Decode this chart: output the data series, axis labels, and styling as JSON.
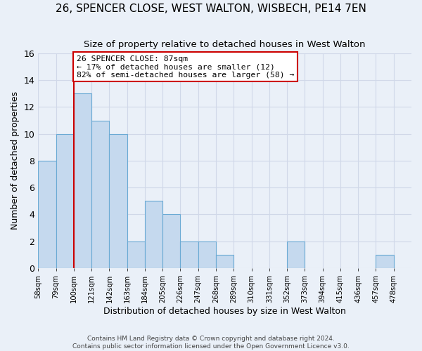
{
  "title": "26, SPENCER CLOSE, WEST WALTON, WISBECH, PE14 7EN",
  "subtitle": "Size of property relative to detached houses in West Walton",
  "xlabel": "Distribution of detached houses by size in West Walton",
  "ylabel": "Number of detached properties",
  "bin_labels": [
    "58sqm",
    "79sqm",
    "100sqm",
    "121sqm",
    "142sqm",
    "163sqm",
    "184sqm",
    "205sqm",
    "226sqm",
    "247sqm",
    "268sqm",
    "289sqm",
    "310sqm",
    "331sqm",
    "352sqm",
    "373sqm",
    "394sqm",
    "415sqm",
    "436sqm",
    "457sqm",
    "478sqm"
  ],
  "bar_values": [
    8,
    10,
    13,
    11,
    10,
    2,
    5,
    4,
    2,
    2,
    1,
    0,
    0,
    0,
    2,
    0,
    0,
    0,
    0,
    1,
    0
  ],
  "bar_color": "#c5d9ee",
  "bar_edge_color": "#6aaad4",
  "vline_color": "#cc0000",
  "annotation_title": "26 SPENCER CLOSE: 87sqm",
  "annotation_line1": "← 17% of detached houses are smaller (12)",
  "annotation_line2": "82% of semi-detached houses are larger (58) →",
  "annotation_box_color": "#ffffff",
  "annotation_box_edge": "#cc0000",
  "ylim": [
    0,
    16
  ],
  "yticks": [
    0,
    2,
    4,
    6,
    8,
    10,
    12,
    14,
    16
  ],
  "grid_color": "#d0d8e8",
  "background_color": "#eaf0f8",
  "footer_line1": "Contains HM Land Registry data © Crown copyright and database right 2024.",
  "footer_line2": "Contains public sector information licensed under the Open Government Licence v3.0."
}
